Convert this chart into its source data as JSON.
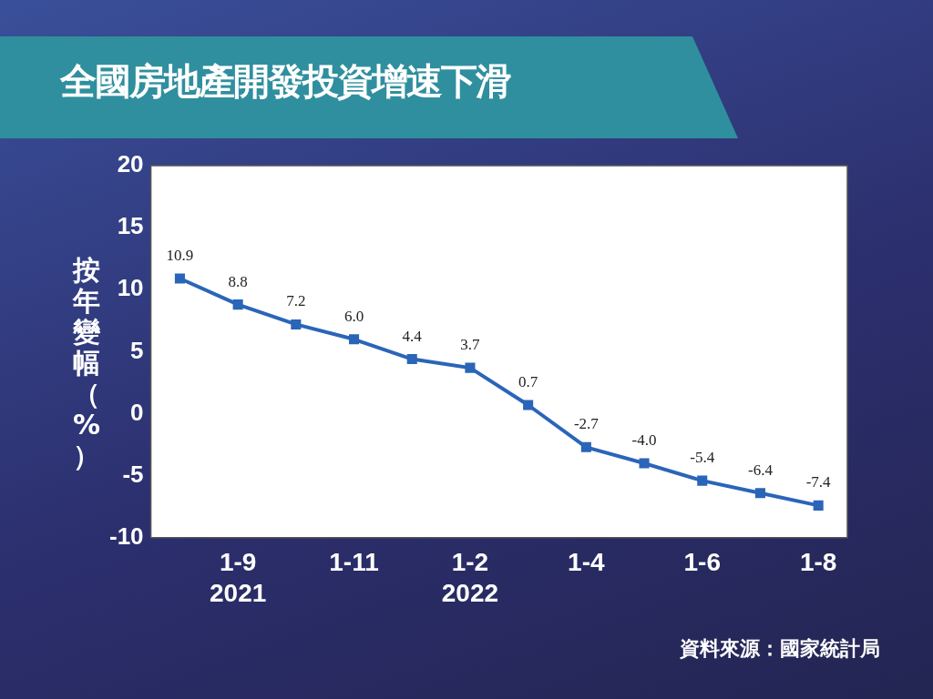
{
  "chart_data": {
    "type": "line",
    "title": "全國房地產開發投資增速下滑",
    "ylabel": "按年變幅（%）",
    "categories": [
      null,
      "1-9\n2021",
      null,
      "1-11",
      null,
      "1-2\n2022",
      null,
      "1-4",
      null,
      "1-6",
      null,
      "1-8"
    ],
    "series": [
      {
        "color": "#2a65b8",
        "values": [
          10.9,
          8.8,
          7.2,
          6.0,
          4.4,
          3.7,
          0.7,
          -2.7,
          -4.0,
          -5.4,
          -6.4,
          -7.4
        ],
        "value_labels": [
          "10.9",
          "8.8",
          "7.2",
          "6.0",
          "4.4",
          "3.7",
          "0.7",
          "-2.7",
          "-4.0",
          "-5.4",
          "-6.4",
          "-7.4"
        ]
      }
    ],
    "ylim": [
      -10,
      20
    ],
    "yticks": [
      -10,
      -5,
      0,
      5,
      10,
      15,
      20
    ],
    "grid": false,
    "legend": false,
    "marker": "square",
    "line_style": "solid",
    "annotations": [
      "資料來源：國家統計局"
    ]
  }
}
